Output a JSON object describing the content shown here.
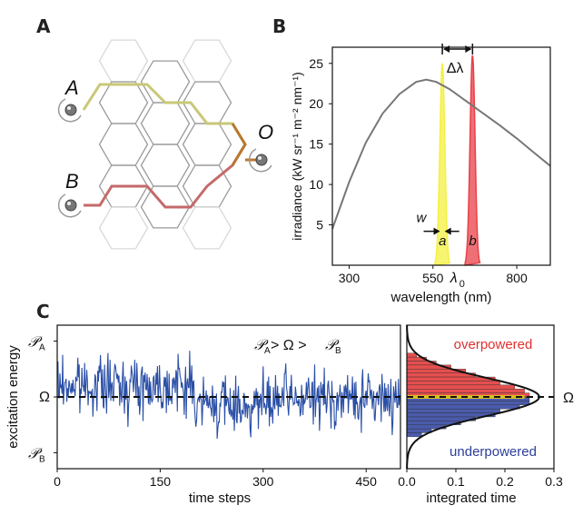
{
  "panels": {
    "a": {
      "letter": "A",
      "node_A": "A",
      "node_B": "B",
      "node_O": "O"
    },
    "b": {
      "letter": "B"
    },
    "c": {
      "letter": "C"
    }
  },
  "colors": {
    "path_a": "#c8c878",
    "path_b": "#c46a6a",
    "path_join": "#b8782e",
    "hex_light": "#d8d8d8",
    "hex_mid": "#9a9a9a",
    "spectrum": "#777777",
    "band_a": "#f4f040",
    "band_b": "#e84048",
    "trace": "#2a4fa6",
    "over": "#e03030",
    "under": "#2c3e9c",
    "omega": "#d8c020"
  },
  "chart_data": [
    {
      "type": "line",
      "title": "",
      "xlabel": "wavelength (nm)",
      "ylabel": "irradiance (kW sr⁻¹ m⁻² nm⁻¹)",
      "xlim": [
        250,
        900
      ],
      "ylim": [
        0,
        27
      ],
      "xticks": [
        300,
        550,
        800
      ],
      "xtick_labels": [
        "300",
        "550",
        "800"
      ],
      "yticks": [
        5,
        10,
        15,
        20,
        25
      ],
      "series": [
        {
          "x": [
            250,
            300,
            350,
            400,
            450,
            500,
            530,
            560,
            600,
            650,
            700,
            750,
            800,
            850,
            900
          ],
          "y": [
            4.5,
            10.3,
            15.2,
            18.8,
            21.2,
            22.7,
            23.0,
            22.7,
            21.8,
            20.3,
            18.8,
            17.3,
            15.7,
            14.0,
            12.3
          ]
        }
      ],
      "bands": [
        {
          "label": "a",
          "center": 578,
          "width": 22,
          "peak": 25
        },
        {
          "label": "b",
          "center": 668,
          "width": 22,
          "peak": 26
        }
      ],
      "annotations": {
        "delta_lambda": "Δλ",
        "w": "w",
        "lambda0": "λ",
        "lambda0_sub": "0"
      }
    },
    {
      "type": "line",
      "xlabel": "time steps",
      "ylabel": "excitation energy",
      "xlim": [
        0,
        500
      ],
      "xticks": [
        0,
        150,
        300,
        450
      ],
      "xtick_labels": [
        "0",
        "150",
        "300",
        "450"
      ],
      "ytick_labels": [
        "𝒫ₐ",
        "Ω",
        "𝒫ʙ"
      ],
      "ylabels_text": {
        "PA": "𝒫",
        "PA_sub": "A",
        "omega": "Ω",
        "PB": "𝒫",
        "PB_sub": "B"
      },
      "annotation": "𝒫ₐ > Ω > 𝒫ʙ",
      "annotation_parts": [
        "𝒫",
        "A",
        " > Ω > ",
        "𝒫",
        "B"
      ],
      "ylim": [
        -3.6,
        3.6
      ],
      "omega_level": 0,
      "series_seed": 7,
      "n_steps": 500
    },
    {
      "type": "bar",
      "orientation": "horizontal",
      "xlabel": "integrated time",
      "xlim": [
        0,
        0.3
      ],
      "xticks": [
        0,
        0.1,
        0.2,
        0.3
      ],
      "xtick_labels": [
        "0.0",
        "0.1",
        "0.2",
        "0.3"
      ],
      "right_label": "Ω",
      "over_label": "overpowered",
      "under_label": "underpowered",
      "bins": [
        {
          "y": 2.1,
          "v": 0.02
        },
        {
          "y": 1.9,
          "v": 0.04
        },
        {
          "y": 1.7,
          "v": 0.06
        },
        {
          "y": 1.5,
          "v": 0.09
        },
        {
          "y": 1.3,
          "v": 0.12
        },
        {
          "y": 1.1,
          "v": 0.14
        },
        {
          "y": 0.9,
          "v": 0.18
        },
        {
          "y": 0.7,
          "v": 0.19
        },
        {
          "y": 0.5,
          "v": 0.22
        },
        {
          "y": 0.3,
          "v": 0.24
        },
        {
          "y": 0.1,
          "v": 0.25
        },
        {
          "y": -0.1,
          "v": 0.25
        },
        {
          "y": -0.3,
          "v": 0.25
        },
        {
          "y": -0.5,
          "v": 0.23
        },
        {
          "y": -0.7,
          "v": 0.19
        },
        {
          "y": -0.9,
          "v": 0.18
        },
        {
          "y": -1.1,
          "v": 0.14
        },
        {
          "y": -1.3,
          "v": 0.11
        },
        {
          "y": -1.5,
          "v": 0.08
        },
        {
          "y": -1.7,
          "v": 0.05
        },
        {
          "y": -1.9,
          "v": 0.03
        }
      ],
      "curve_peak": 0.27,
      "curve_sigma": 0.95
    }
  ]
}
